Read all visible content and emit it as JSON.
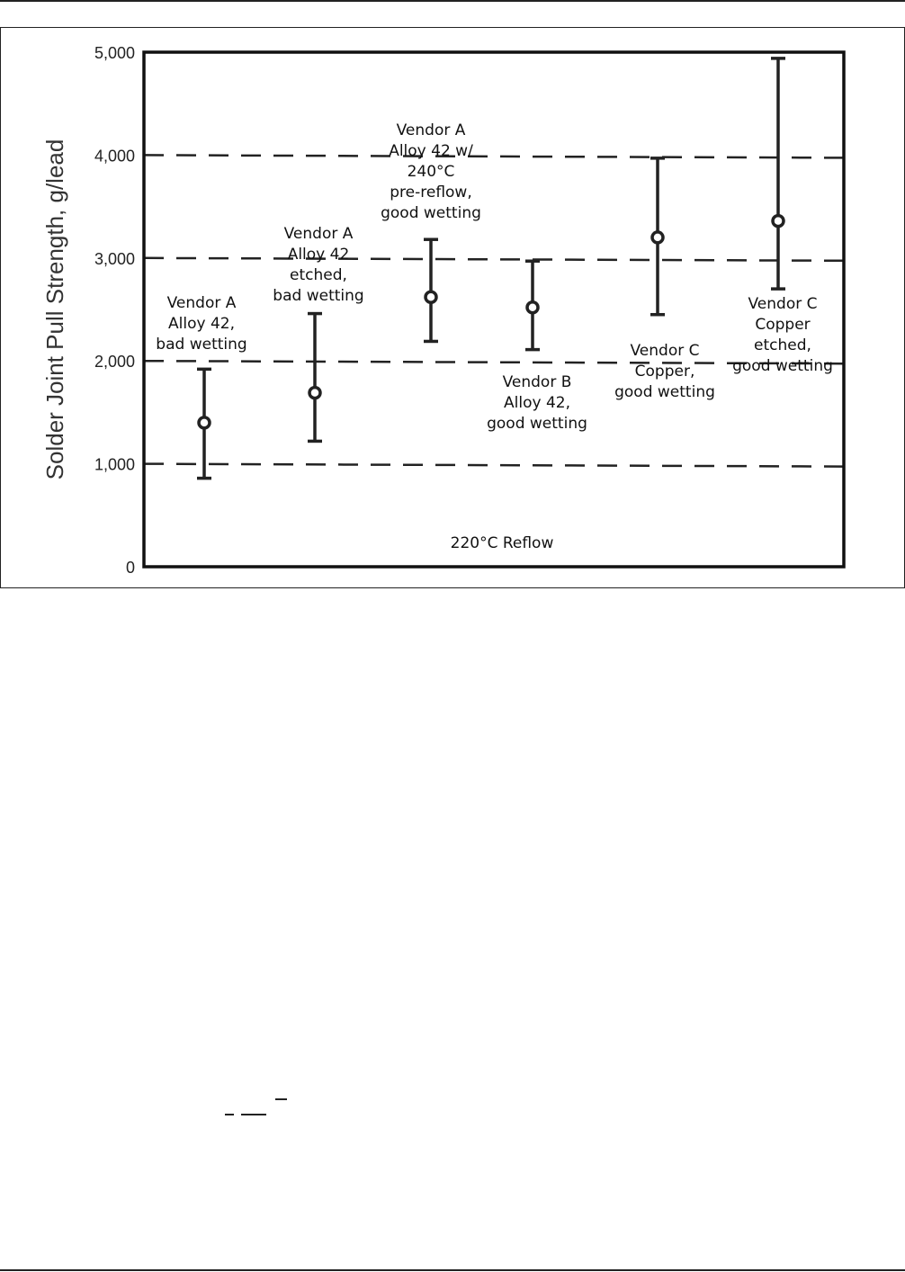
{
  "chart_data": {
    "type": "scatter",
    "subtype": "error-bar",
    "title": "",
    "xlabel": "",
    "ylabel": "Solder Joint Pull Strength, g/lead",
    "ylim": [
      0,
      5000
    ],
    "yticks": [
      0,
      1000,
      2000,
      3000,
      4000,
      5000
    ],
    "ytick_labels": [
      "0",
      "1,000",
      "2,000",
      "3,000",
      "4,000",
      "5,000"
    ],
    "grid": "horizontal dashed",
    "annotation": "220°C Reflow",
    "series": [
      {
        "label": [
          "Vendor A",
          "Alloy 42,",
          "bad wetting"
        ],
        "mean": 1400,
        "min": 860,
        "max": 1920
      },
      {
        "label": [
          "Vendor A",
          "Alloy 42",
          "etched,",
          "bad wetting"
        ],
        "mean": 1690,
        "min": 1220,
        "max": 2460
      },
      {
        "label": [
          "Vendor A",
          "Alloy 42 w/",
          "240°C",
          "pre-reflow,",
          "good wetting"
        ],
        "mean": 2620,
        "min": 2190,
        "max": 3180
      },
      {
        "label": [
          "Vendor B",
          "Alloy 42,",
          "good wetting"
        ],
        "mean": 2520,
        "min": 2110,
        "max": 2970
      },
      {
        "label": [
          "Vendor C",
          "Copper,",
          "good wetting"
        ],
        "mean": 3200,
        "min": 2450,
        "max": 3970
      },
      {
        "label": [
          "Vendor C",
          "Copper",
          "etched,",
          "good wetting"
        ],
        "mean": 3360,
        "min": 2700,
        "max": 4940
      }
    ]
  }
}
